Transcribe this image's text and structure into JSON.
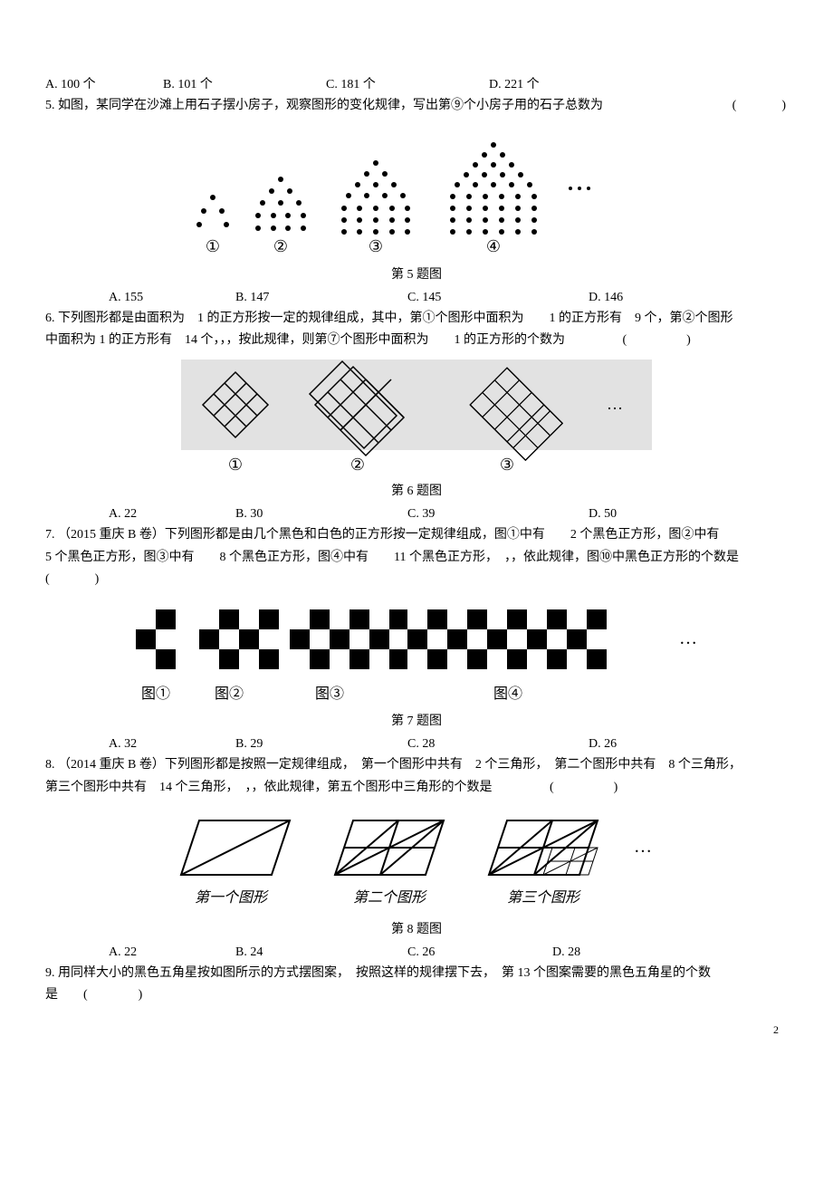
{
  "q4": {
    "opts": {
      "A": "A. 100 个",
      "B": "B. 101 个",
      "C": "C. 181 个",
      "D": "D. 221 个"
    },
    "opt_pos": {
      "A": 0,
      "B": 130,
      "C": 310,
      "D": 490
    }
  },
  "q5": {
    "num": "5.",
    "text": "如图，某同学在沙滩上用石子摆小房子，观察图形的变化规律，写出第⑨个小房子用的石子总数为",
    "paren": "(　　　)",
    "caption": "第 5 题图",
    "opts": {
      "A": "A. 155",
      "B": "B. 147",
      "C": "C. 145",
      "D": "D. 146"
    },
    "opt_pos": {
      "A": 70,
      "B": 210,
      "C": 400,
      "D": 600
    },
    "fig_labels": [
      "①",
      "②",
      "③",
      "④"
    ],
    "dots_ellipsis": "…",
    "dot_color": "#000000"
  },
  "q6": {
    "num": "6.",
    "text_a": "下列图形都是由面积为　1 的正方形按一定的规律组成，其中，第①个图形中面积为　　1 的正方形有　9 个，第②个图形",
    "text_b": "中面积为 1 的正方形有　14 个，，，按此规律，则第⑦个图形中面积为　　1 的正方形的个数为",
    "paren": "(　　　　)",
    "caption": "第 6 题图",
    "opts": {
      "A": "A. 22",
      "B": "B. 30",
      "C": "C. 39",
      "D": "D. 50"
    },
    "opt_pos": {
      "A": 70,
      "B": 210,
      "C": 400,
      "D": 600
    },
    "fig_labels": [
      "①",
      "②",
      "③"
    ],
    "ellipsis": "…",
    "stroke": "#000000",
    "bg": "#d8d8d8"
  },
  "q7": {
    "num": "7.",
    "text_a": "（2015 重庆 B 卷）下列图形都是由几个黑色和白色的正方形按一定规律组成，图①中有　　2 个黑色正方形，图②中有",
    "text_b": "5 个黑色正方形，图③中有　　8 个黑色正方形，图④中有　　11 个黑色正方形，　，，依此规律，图⑩中黑色正方形的个数是",
    "paren": "(　　　)",
    "caption": "第 7 题图",
    "opts": {
      "A": "A. 32",
      "B": "B. 29",
      "C": "C. 28",
      "D": "D. 26"
    },
    "opt_pos": {
      "A": 70,
      "B": 210,
      "C": 400,
      "D": 600
    },
    "fig_labels": [
      "图①",
      "图②",
      "图③",
      "图④"
    ],
    "ellipsis": "…",
    "black": "#000000",
    "white": "#ffffff"
  },
  "q8": {
    "num": "8.",
    "text_a": "（2014 重庆 B 卷）下列图形都是按照一定规律组成，　第一个图形中共有　2 个三角形，　第二个图形中共有　8 个三角形，",
    "text_b": "第三个图形中共有　14 个三角形，　，，依此规律，第五个图形中三角形的个数是",
    "paren": "(　　　　)",
    "caption": "第 8 题图",
    "opts": {
      "A": "A. 22",
      "B": "B. 24",
      "C": "C. 26",
      "D": "D. 28"
    },
    "opt_pos": {
      "A": 70,
      "B": 210,
      "C": 400,
      "D": 560
    },
    "fig_labels": [
      "第一个图形",
      "第二个图形",
      "第三个图形"
    ],
    "ellipsis": "…",
    "stroke": "#000000"
  },
  "q9": {
    "num": "9.",
    "text_a": "用同样大小的黑色五角星按如图所示的方式摆图案，　按照这样的规律摆下去，　第 13 个图案需要的黑色五角星的个数",
    "text_b": "是　　(　　　　)"
  },
  "page_num": "2"
}
